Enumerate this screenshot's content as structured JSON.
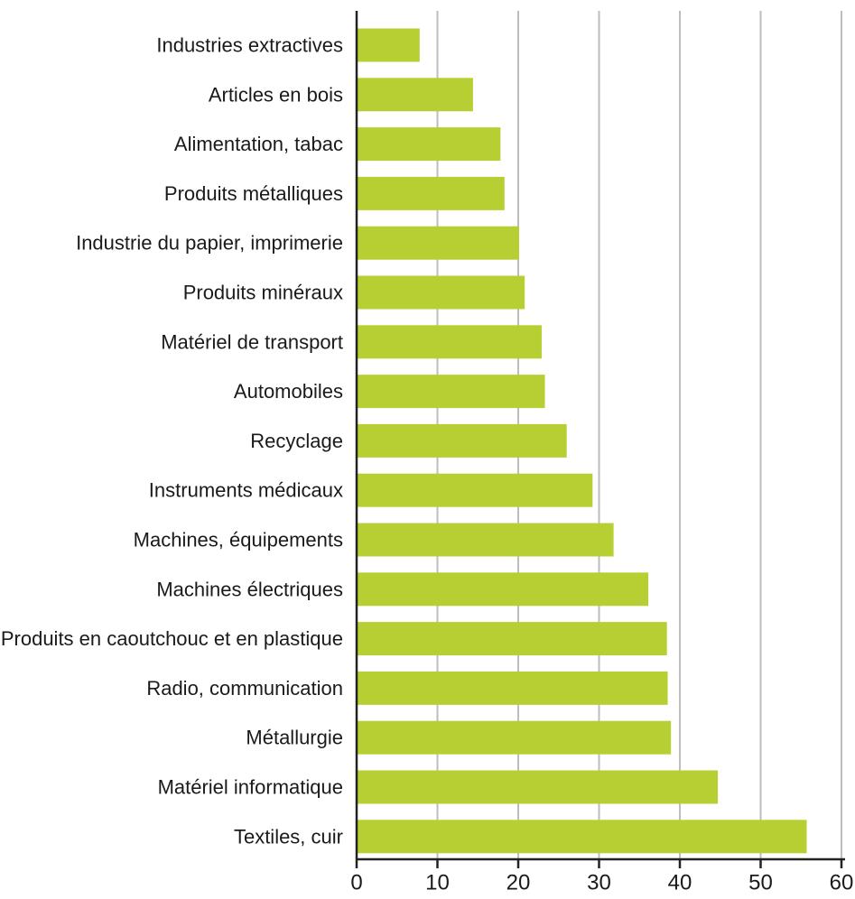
{
  "chart_data": {
    "type": "bar",
    "orientation": "horizontal",
    "categories": [
      "Industries extractives",
      "Articles en bois",
      "Alimentation, tabac",
      "Produits métalliques",
      "Industrie du papier, imprimerie",
      "Produits minéraux",
      "Matériel de transport",
      "Automobiles",
      "Recyclage",
      "Instruments médicaux",
      "Machines, équipements",
      "Machines électriques",
      "Produits en caoutchouc et en plastique",
      "Radio, communication",
      "Métallurgie",
      "Matériel informatique",
      "Textiles, cuir"
    ],
    "values": [
      7.8,
      14.4,
      17.8,
      18.3,
      20.1,
      20.8,
      22.9,
      23.3,
      26.0,
      29.2,
      31.8,
      36.1,
      38.4,
      38.5,
      38.9,
      44.7,
      55.7
    ],
    "xlim": [
      0,
      60
    ],
    "xticks": [
      "0",
      "10",
      "20",
      "30",
      "40",
      "50",
      "60"
    ],
    "grid": "vertical",
    "bar_color": "#b8cf33",
    "grid_color": "#bdbdbd",
    "axis_color": "#222222"
  }
}
